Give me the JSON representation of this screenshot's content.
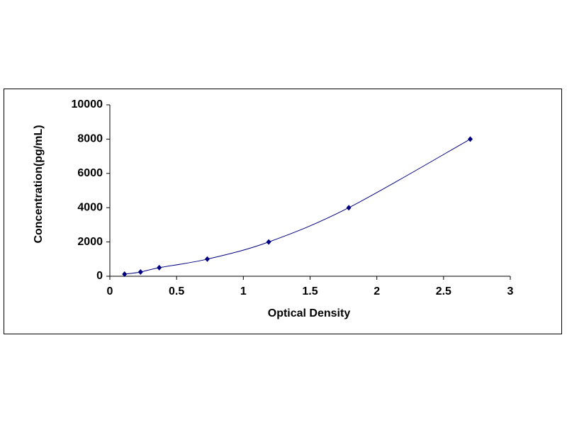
{
  "chart_data": {
    "type": "scatter",
    "curve": "smooth",
    "x_label": "Optical Density",
    "y_label": "Concentration(pg/mL)",
    "x": [
      0.11,
      0.23,
      0.37,
      0.73,
      1.19,
      1.79,
      2.7
    ],
    "values": [
      125,
      250,
      500,
      1000,
      2000,
      4000,
      8000
    ],
    "color": "#000080",
    "xlim": [
      0,
      3
    ],
    "xticks": [
      0,
      0.5,
      1,
      1.5,
      2,
      2.5,
      3
    ],
    "ylim": [
      0,
      10000
    ],
    "yticks": [
      0,
      2000,
      4000,
      6000,
      8000,
      10000
    ],
    "grid": false
  }
}
